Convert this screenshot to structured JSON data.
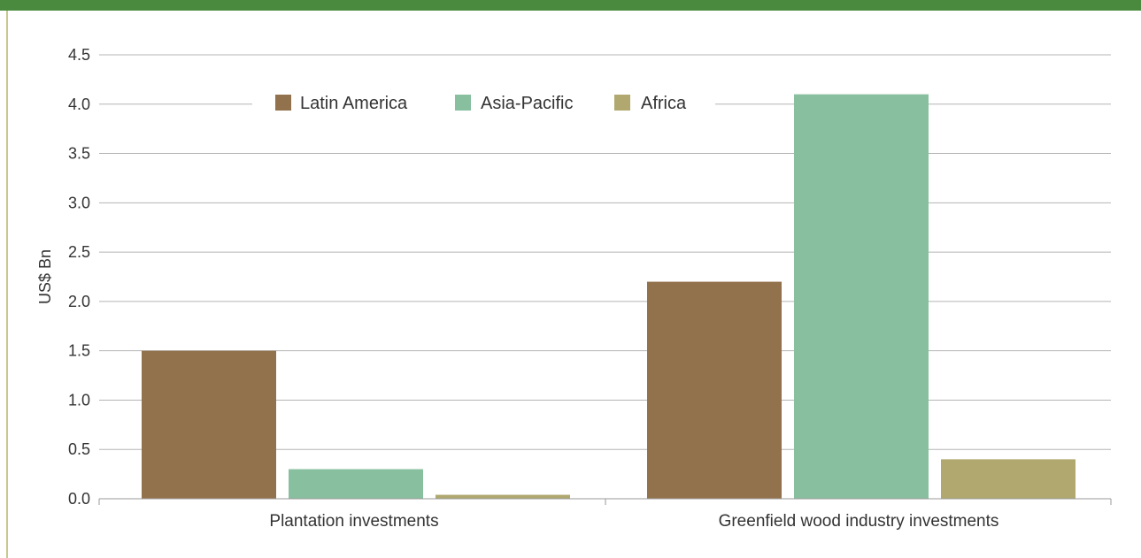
{
  "chart_data": {
    "type": "bar",
    "categories": [
      "Plantation investments",
      "Greenfield wood industry investments"
    ],
    "series": [
      {
        "name": "Latin America",
        "color": "#92724c",
        "values": [
          1.5,
          2.2
        ]
      },
      {
        "name": "Asia-Pacific",
        "color": "#88bf9f",
        "values": [
          0.3,
          4.1
        ]
      },
      {
        "name": "Africa",
        "color": "#b0a86e",
        "values": [
          0.04,
          0.4
        ]
      }
    ],
    "yticks": [
      "0.0",
      "0.5",
      "1.0",
      "1.5",
      "2.0",
      "2.5",
      "3.0",
      "3.5",
      "4.0",
      "4.5"
    ],
    "ylim": [
      0,
      4.5
    ],
    "ylabel": "US$ Bn",
    "xlabel": "",
    "title": "",
    "grid": true,
    "legend_position": "top-center"
  },
  "colors": {
    "accent_bar": "#4a8a3f",
    "left_rule": "#c8c98e",
    "grid": "#b5b5b5",
    "axis": "#999999",
    "text": "#333333"
  }
}
